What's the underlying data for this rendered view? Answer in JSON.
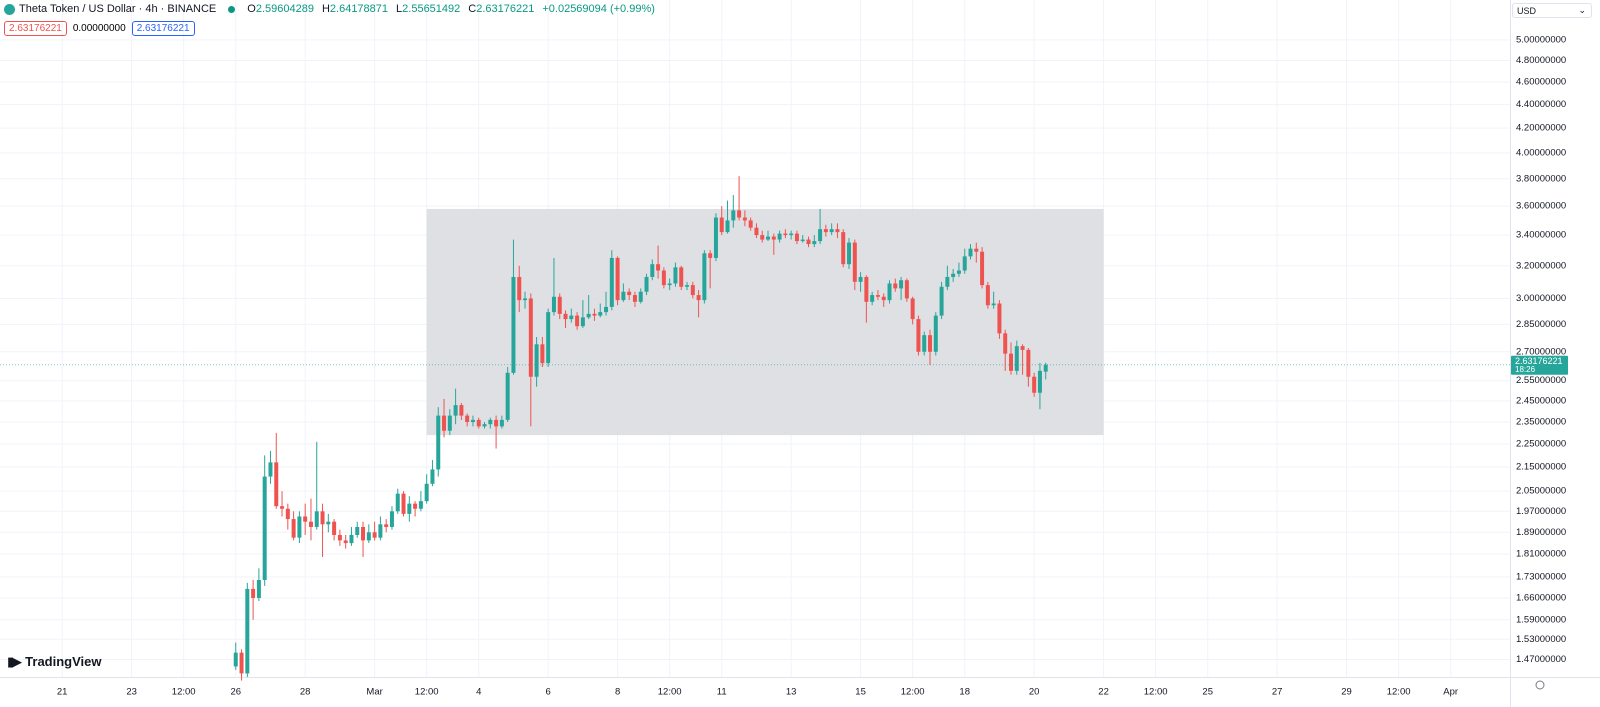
{
  "header": {
    "title": "Theta Token / US Dollar · 4h · BINANCE",
    "ohlc": [
      {
        "label": "O",
        "value": "2.59604289"
      },
      {
        "label": "H",
        "value": "2.64178871"
      },
      {
        "label": "L",
        "value": "2.55651492"
      },
      {
        "label": "C",
        "value": "2.63176221"
      }
    ],
    "change": "+0.02569094 (+0.99%)",
    "badges": [
      "2.63176221",
      "0.00000000",
      "2.63176221"
    ],
    "currency": "USD",
    "logo": "TradingView"
  },
  "chart_data": {
    "type": "candlestick",
    "log_scale": true,
    "grid": true,
    "up_color": "#26a69a",
    "down_color": "#ef5350",
    "price_label": {
      "value": "2.63176221",
      "countdown": "18:26"
    },
    "ylim": [
      1.42,
      5.41
    ],
    "yticks": [
      {
        "value": 5.0,
        "label": "5.00000000"
      },
      {
        "value": 4.8,
        "label": "4.80000000"
      },
      {
        "value": 4.6,
        "label": "4.60000000"
      },
      {
        "value": 4.4,
        "label": "4.40000000"
      },
      {
        "value": 4.2,
        "label": "4.20000000"
      },
      {
        "value": 4.0,
        "label": "4.00000000"
      },
      {
        "value": 3.8,
        "label": "3.80000000"
      },
      {
        "value": 3.6,
        "label": "3.60000000"
      },
      {
        "value": 3.4,
        "label": "3.40000000"
      },
      {
        "value": 3.2,
        "label": "3.20000000"
      },
      {
        "value": 3.0,
        "label": "3.00000000"
      },
      {
        "value": 2.85,
        "label": "2.85000000"
      },
      {
        "value": 2.7,
        "label": "2.70000000"
      },
      {
        "value": 2.55,
        "label": "2.55000000"
      },
      {
        "value": 2.45,
        "label": "2.45000000"
      },
      {
        "value": 2.35,
        "label": "2.35000000"
      },
      {
        "value": 2.25,
        "label": "2.25000000"
      },
      {
        "value": 2.15,
        "label": "2.15000000"
      },
      {
        "value": 2.05,
        "label": "2.05000000"
      },
      {
        "value": 1.97,
        "label": "1.97000000"
      },
      {
        "value": 1.89,
        "label": "1.89000000"
      },
      {
        "value": 1.81,
        "label": "1.81000000"
      },
      {
        "value": 1.73,
        "label": "1.73000000"
      },
      {
        "value": 1.66,
        "label": "1.66000000"
      },
      {
        "value": 1.59,
        "label": "1.59000000"
      },
      {
        "value": 1.53,
        "label": "1.53000000"
      },
      {
        "value": 1.47,
        "label": "1.47000000"
      }
    ],
    "xlim": [
      "02-19 05:00",
      "04-02 17:00"
    ],
    "xticks": [
      {
        "value": "02-21 00:00",
        "label": "21"
      },
      {
        "value": "02-23 00:00",
        "label": "23"
      },
      {
        "value": "02-24 12:00",
        "label": "12:00"
      },
      {
        "value": "02-26 00:00",
        "label": "26"
      },
      {
        "value": "02-28 00:00",
        "label": "28"
      },
      {
        "value": "03-01 00:00",
        "label": "Mar"
      },
      {
        "value": "03-02 12:00",
        "label": "12:00"
      },
      {
        "value": "03-04 00:00",
        "label": "4"
      },
      {
        "value": "03-06 00:00",
        "label": "6"
      },
      {
        "value": "03-08 00:00",
        "label": "8"
      },
      {
        "value": "03-09 12:00",
        "label": "12:00"
      },
      {
        "value": "03-11 00:00",
        "label": "11"
      },
      {
        "value": "03-13 00:00",
        "label": "13"
      },
      {
        "value": "03-15 00:00",
        "label": "15"
      },
      {
        "value": "03-16 12:00",
        "label": "12:00"
      },
      {
        "value": "03-18 00:00",
        "label": "18"
      },
      {
        "value": "03-20 00:00",
        "label": "20"
      },
      {
        "value": "03-22 00:00",
        "label": "22"
      },
      {
        "value": "03-23 12:00",
        "label": "12:00"
      },
      {
        "value": "03-25 00:00",
        "label": "25"
      },
      {
        "value": "03-27 00:00",
        "label": "27"
      },
      {
        "value": "03-29 00:00",
        "label": "29"
      },
      {
        "value": "03-30 12:00",
        "label": "12:00"
      },
      {
        "value": "04-01 00:00",
        "label": "Apr"
      }
    ],
    "rectangle": {
      "x": [
        "03-02 12:00",
        "03-22 00:00"
      ],
      "y": [
        2.29,
        3.58
      ],
      "color": "#dcdde1"
    },
    "x": [
      "02-26 00:00",
      "02-26 04:00",
      "02-26 08:00",
      "02-26 12:00",
      "02-26 16:00",
      "02-26 20:00",
      "02-27 00:00",
      "02-27 04:00",
      "02-27 08:00",
      "02-27 12:00",
      "02-27 16:00",
      "02-27 20:00",
      "02-28 00:00",
      "02-28 04:00",
      "02-28 08:00",
      "02-28 12:00",
      "02-28 16:00",
      "02-28 20:00",
      "02-29 00:00",
      "02-29 04:00",
      "02-29 08:00",
      "02-29 12:00",
      "02-29 16:00",
      "02-29 20:00",
      "03-01 00:00",
      "03-01 04:00",
      "03-01 08:00",
      "03-01 12:00",
      "03-01 16:00",
      "03-01 20:00",
      "03-02 00:00",
      "03-02 04:00",
      "03-02 08:00",
      "03-02 12:00",
      "03-02 16:00",
      "03-02 20:00",
      "03-03 00:00",
      "03-03 04:00",
      "03-03 08:00",
      "03-03 12:00",
      "03-03 16:00",
      "03-03 20:00",
      "03-04 00:00",
      "03-04 04:00",
      "03-04 08:00",
      "03-04 12:00",
      "03-04 16:00",
      "03-04 20:00",
      "03-05 00:00",
      "03-05 04:00",
      "03-05 08:00",
      "03-05 12:00",
      "03-05 16:00",
      "03-05 20:00",
      "03-06 00:00",
      "03-06 04:00",
      "03-06 08:00",
      "03-06 12:00",
      "03-06 16:00",
      "03-06 20:00",
      "03-07 00:00",
      "03-07 04:00",
      "03-07 08:00",
      "03-07 12:00",
      "03-07 16:00",
      "03-07 20:00",
      "03-08 00:00",
      "03-08 04:00",
      "03-08 08:00",
      "03-08 12:00",
      "03-08 16:00",
      "03-08 20:00",
      "03-09 00:00",
      "03-09 04:00",
      "03-09 08:00",
      "03-09 12:00",
      "03-09 16:00",
      "03-09 20:00",
      "03-10 00:00",
      "03-10 04:00",
      "03-10 08:00",
      "03-10 12:00",
      "03-10 16:00",
      "03-10 20:00",
      "03-11 00:00",
      "03-11 04:00",
      "03-11 08:00",
      "03-11 12:00",
      "03-11 16:00",
      "03-11 20:00",
      "03-12 00:00",
      "03-12 04:00",
      "03-12 08:00",
      "03-12 12:00",
      "03-12 16:00",
      "03-12 20:00",
      "03-13 00:00",
      "03-13 04:00",
      "03-13 08:00",
      "03-13 12:00",
      "03-13 16:00",
      "03-13 20:00",
      "03-14 00:00",
      "03-14 04:00",
      "03-14 08:00",
      "03-14 12:00",
      "03-14 16:00",
      "03-14 20:00",
      "03-15 00:00",
      "03-15 04:00",
      "03-15 08:00",
      "03-15 12:00",
      "03-15 16:00",
      "03-15 20:00",
      "03-16 00:00",
      "03-16 04:00",
      "03-16 08:00",
      "03-16 12:00",
      "03-16 16:00",
      "03-16 20:00",
      "03-17 00:00",
      "03-17 04:00",
      "03-17 08:00",
      "03-17 12:00",
      "03-17 16:00",
      "03-17 20:00",
      "03-18 00:00",
      "03-18 04:00",
      "03-18 08:00",
      "03-18 12:00",
      "03-18 16:00",
      "03-18 20:00",
      "03-19 00:00",
      "03-19 04:00",
      "03-19 08:00",
      "03-19 12:00",
      "03-19 16:00",
      "03-19 20:00",
      "03-20 00:00",
      "03-20 04:00",
      "03-20 08:00"
    ],
    "ohlc": [
      [
        1.45,
        1.52,
        1.44,
        1.49
      ],
      [
        1.49,
        1.5,
        1.41,
        1.43
      ],
      [
        1.43,
        1.71,
        1.42,
        1.69
      ],
      [
        1.69,
        1.72,
        1.59,
        1.66
      ],
      [
        1.66,
        1.76,
        1.65,
        1.72
      ],
      [
        1.72,
        2.2,
        1.7,
        2.11
      ],
      [
        2.11,
        2.22,
        2.08,
        2.17
      ],
      [
        2.17,
        2.3,
        1.98,
        1.99
      ],
      [
        1.99,
        2.05,
        1.95,
        1.98
      ],
      [
        1.98,
        2.0,
        1.9,
        1.94
      ],
      [
        1.94,
        1.97,
        1.86,
        1.87
      ],
      [
        1.87,
        1.97,
        1.85,
        1.95
      ],
      [
        1.95,
        2.0,
        1.88,
        1.93
      ],
      [
        1.93,
        2.02,
        1.86,
        1.91
      ],
      [
        1.91,
        2.26,
        1.9,
        1.97
      ],
      [
        1.97,
        2.0,
        1.8,
        1.92
      ],
      [
        1.92,
        1.96,
        1.89,
        1.93
      ],
      [
        1.93,
        1.94,
        1.86,
        1.88
      ],
      [
        1.88,
        1.9,
        1.84,
        1.86
      ],
      [
        1.86,
        1.88,
        1.83,
        1.85
      ],
      [
        1.85,
        1.91,
        1.84,
        1.88
      ],
      [
        1.88,
        1.93,
        1.87,
        1.91
      ],
      [
        1.91,
        1.93,
        1.8,
        1.86
      ],
      [
        1.86,
        1.92,
        1.85,
        1.89
      ],
      [
        1.89,
        1.93,
        1.86,
        1.87
      ],
      [
        1.87,
        1.95,
        1.86,
        1.92
      ],
      [
        1.92,
        1.94,
        1.89,
        1.91
      ],
      [
        1.91,
        1.99,
        1.9,
        1.97
      ],
      [
        1.97,
        2.06,
        1.96,
        2.04
      ],
      [
        2.04,
        2.05,
        1.95,
        1.96
      ],
      [
        1.96,
        2.03,
        1.93,
        2.0
      ],
      [
        2.0,
        2.01,
        1.95,
        1.98
      ],
      [
        1.98,
        2.05,
        1.97,
        2.01
      ],
      [
        2.01,
        2.12,
        2.0,
        2.08
      ],
      [
        2.08,
        2.18,
        2.07,
        2.14
      ],
      [
        2.14,
        2.42,
        2.11,
        2.38
      ],
      [
        2.38,
        2.46,
        2.28,
        2.31
      ],
      [
        2.31,
        2.41,
        2.29,
        2.38
      ],
      [
        2.38,
        2.51,
        2.34,
        2.43
      ],
      [
        2.43,
        2.44,
        2.36,
        2.38
      ],
      [
        2.38,
        2.39,
        2.33,
        2.35
      ],
      [
        2.35,
        2.38,
        2.33,
        2.36
      ],
      [
        2.36,
        2.37,
        2.32,
        2.33
      ],
      [
        2.33,
        2.35,
        2.32,
        2.34
      ],
      [
        2.34,
        2.37,
        2.32,
        2.36
      ],
      [
        2.36,
        2.38,
        2.23,
        2.33
      ],
      [
        2.33,
        2.38,
        2.32,
        2.36
      ],
      [
        2.36,
        2.62,
        2.35,
        2.59
      ],
      [
        2.59,
        3.37,
        2.58,
        3.13
      ],
      [
        3.13,
        3.2,
        2.92,
        2.99
      ],
      [
        2.99,
        3.04,
        2.94,
        3.0
      ],
      [
        3.0,
        3.03,
        2.33,
        2.57
      ],
      [
        2.57,
        2.78,
        2.52,
        2.74
      ],
      [
        2.74,
        2.78,
        2.62,
        2.64
      ],
      [
        2.64,
        2.94,
        2.62,
        2.92
      ],
      [
        2.92,
        3.25,
        2.9,
        3.01
      ],
      [
        3.01,
        3.03,
        2.88,
        2.91
      ],
      [
        2.91,
        2.93,
        2.83,
        2.88
      ],
      [
        2.88,
        2.94,
        2.86,
        2.9
      ],
      [
        2.9,
        2.92,
        2.82,
        2.84
      ],
      [
        2.84,
        2.99,
        2.83,
        2.89
      ],
      [
        2.89,
        3.02,
        2.88,
        2.91
      ],
      [
        2.91,
        2.94,
        2.87,
        2.9
      ],
      [
        2.9,
        2.97,
        2.89,
        2.92
      ],
      [
        2.92,
        3.04,
        2.9,
        2.95
      ],
      [
        2.95,
        3.3,
        2.93,
        3.25
      ],
      [
        3.25,
        3.26,
        2.96,
        2.99
      ],
      [
        2.99,
        3.09,
        2.98,
        3.04
      ],
      [
        3.04,
        3.06,
        2.99,
        3.02
      ],
      [
        3.02,
        3.04,
        2.95,
        2.98
      ],
      [
        2.98,
        3.06,
        2.97,
        3.04
      ],
      [
        3.04,
        3.15,
        3.02,
        3.13
      ],
      [
        3.13,
        3.24,
        3.11,
        3.21
      ],
      [
        3.21,
        3.33,
        3.12,
        3.17
      ],
      [
        3.17,
        3.19,
        3.06,
        3.08
      ],
      [
        3.08,
        3.12,
        3.05,
        3.09
      ],
      [
        3.09,
        3.22,
        3.07,
        3.19
      ],
      [
        3.19,
        3.2,
        3.05,
        3.07
      ],
      [
        3.07,
        3.1,
        3.05,
        3.08
      ],
      [
        3.08,
        3.1,
        3.0,
        3.02
      ],
      [
        3.02,
        3.05,
        2.89,
        2.99
      ],
      [
        2.99,
        3.3,
        2.97,
        3.28
      ],
      [
        3.28,
        3.3,
        3.06,
        3.25
      ],
      [
        3.25,
        3.55,
        3.23,
        3.52
      ],
      [
        3.52,
        3.6,
        3.4,
        3.42
      ],
      [
        3.42,
        3.64,
        3.41,
        3.5
      ],
      [
        3.5,
        3.68,
        3.45,
        3.57
      ],
      [
        3.57,
        3.82,
        3.5,
        3.52
      ],
      [
        3.52,
        3.57,
        3.46,
        3.5
      ],
      [
        3.5,
        3.52,
        3.43,
        3.45
      ],
      [
        3.45,
        3.48,
        3.38,
        3.4
      ],
      [
        3.4,
        3.43,
        3.35,
        3.37
      ],
      [
        3.37,
        3.43,
        3.36,
        3.39
      ],
      [
        3.39,
        3.41,
        3.27,
        3.37
      ],
      [
        3.37,
        3.43,
        3.35,
        3.41
      ],
      [
        3.41,
        3.44,
        3.38,
        3.4
      ],
      [
        3.4,
        3.43,
        3.37,
        3.41
      ],
      [
        3.41,
        3.43,
        3.34,
        3.36
      ],
      [
        3.36,
        3.4,
        3.35,
        3.37
      ],
      [
        3.37,
        3.39,
        3.32,
        3.34
      ],
      [
        3.34,
        3.4,
        3.32,
        3.36
      ],
      [
        3.36,
        3.58,
        3.34,
        3.44
      ],
      [
        3.44,
        3.47,
        3.39,
        3.42
      ],
      [
        3.42,
        3.48,
        3.4,
        3.44
      ],
      [
        3.44,
        3.48,
        3.38,
        3.42
      ],
      [
        3.42,
        3.44,
        3.19,
        3.21
      ],
      [
        3.21,
        3.38,
        3.18,
        3.35
      ],
      [
        3.35,
        3.37,
        3.05,
        3.1
      ],
      [
        3.1,
        3.16,
        3.04,
        3.13
      ],
      [
        3.13,
        3.14,
        2.86,
        2.98
      ],
      [
        2.98,
        3.04,
        2.96,
        3.02
      ],
      [
        3.02,
        3.05,
        2.99,
        3.01
      ],
      [
        3.01,
        3.03,
        2.95,
        2.99
      ],
      [
        2.99,
        3.11,
        2.97,
        3.09
      ],
      [
        3.09,
        3.12,
        3.04,
        3.06
      ],
      [
        3.06,
        3.13,
        2.99,
        3.11
      ],
      [
        3.11,
        3.12,
        2.98,
        3.0
      ],
      [
        3.0,
        3.01,
        2.85,
        2.88
      ],
      [
        2.88,
        2.9,
        2.68,
        2.7
      ],
      [
        2.7,
        2.81,
        2.68,
        2.79
      ],
      [
        2.79,
        2.82,
        2.63,
        2.7
      ],
      [
        2.7,
        2.92,
        2.68,
        2.9
      ],
      [
        2.9,
        3.1,
        2.88,
        3.07
      ],
      [
        3.07,
        3.2,
        3.05,
        3.13
      ],
      [
        3.13,
        3.18,
        3.1,
        3.15
      ],
      [
        3.15,
        3.22,
        3.13,
        3.17
      ],
      [
        3.17,
        3.31,
        3.15,
        3.26
      ],
      [
        3.26,
        3.34,
        3.24,
        3.31
      ],
      [
        3.31,
        3.35,
        3.22,
        3.29
      ],
      [
        3.29,
        3.32,
        3.06,
        3.08
      ],
      [
        3.08,
        3.1,
        2.94,
        2.96
      ],
      [
        2.96,
        3.04,
        2.94,
        2.97
      ],
      [
        2.97,
        2.99,
        2.77,
        2.8
      ],
      [
        2.8,
        2.82,
        2.6,
        2.69
      ],
      [
        2.69,
        2.75,
        2.58,
        2.6
      ],
      [
        2.6,
        2.76,
        2.58,
        2.73
      ],
      [
        2.73,
        2.74,
        2.58,
        2.71
      ],
      [
        2.71,
        2.72,
        2.52,
        2.57
      ],
      [
        2.57,
        2.59,
        2.47,
        2.49
      ],
      [
        2.49,
        2.64,
        2.41,
        2.6
      ],
      [
        2.59604289,
        2.64178871,
        2.55651492,
        2.63176221
      ]
    ]
  }
}
